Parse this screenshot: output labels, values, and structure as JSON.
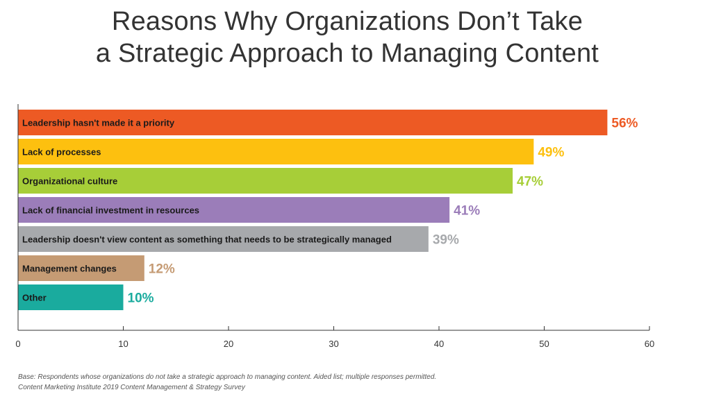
{
  "title_lines": [
    "Reasons Why Organizations Don’t Take",
    "a Strategic Approach to Managing Content"
  ],
  "chart_data": {
    "type": "bar",
    "orientation": "horizontal",
    "title": "Reasons Why Organizations Don’t Take a Strategic Approach to Managing Content",
    "categories": [
      "Leadership hasn't made it a priority",
      "Lack of processes",
      "Organizational culture",
      "Lack of financial investment in resources",
      "Leadership doesn't view content as something that needs to be strategically managed",
      "Management changes",
      "Other"
    ],
    "values": [
      56,
      49,
      47,
      41,
      39,
      12,
      10
    ],
    "value_labels": [
      "56%",
      "49%",
      "47%",
      "41%",
      "39%",
      "12%",
      "10%"
    ],
    "colors": [
      "#ED5A24",
      "#FDC00F",
      "#A7CE38",
      "#9B7DB9",
      "#A7A9AC",
      "#C59B74",
      "#1AAB9E"
    ],
    "xlim": [
      0,
      60
    ],
    "xticks": [
      0,
      10,
      20,
      30,
      40,
      50,
      60
    ],
    "grid": false,
    "legend": "none"
  },
  "footnote_lines": [
    "Base: Respondents whose organizations do not take a strategic approach to managing content. Aided list; multiple responses permitted.",
    "Content Marketing Institute 2019 Content Management & Strategy Survey"
  ]
}
